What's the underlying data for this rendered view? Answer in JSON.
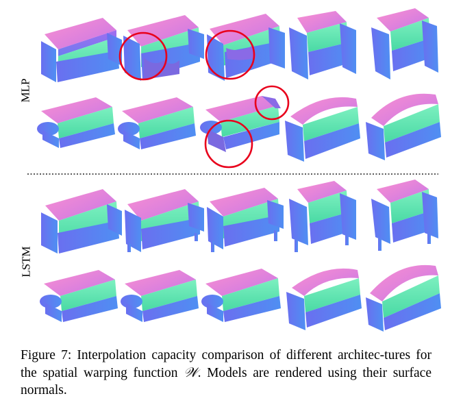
{
  "figure": {
    "row_labels": {
      "top": "MLP",
      "bottom": "LSTM"
    },
    "caption": {
      "lead": "Figure 7: Interpolation capacity comparison of different architec-tures for the spatial warping function ",
      "symbol": "𝒲",
      "tail": ". Models are rendered using their surface normals."
    },
    "colors": {
      "pink": "#f27ec8",
      "green": "#63e9b0",
      "blue": "#5a76f0",
      "purple": "#9a6fe8",
      "highlight": "#e8001b",
      "divider": "#222222"
    },
    "sections": [
      {
        "name": "MLP",
        "rows": [
          {
            "shapes": [
              "sofa",
              "sofa-flawed",
              "sofa-flawed",
              "armchair",
              "armchair"
            ]
          },
          {
            "shapes": [
              "couch-rolled",
              "couch-rolled",
              "couch-flawed",
              "couch-camel",
              "couch-camel"
            ]
          }
        ]
      },
      {
        "name": "LSTM",
        "rows": [
          {
            "shapes": [
              "sofa",
              "sofa-legs",
              "sofa-legs",
              "armchair",
              "armchair"
            ]
          },
          {
            "shapes": [
              "couch-rolled",
              "couch-rolled",
              "couch-rolled",
              "couch-camel",
              "couch-camel"
            ]
          }
        ]
      }
    ],
    "highlight_count": 4
  }
}
